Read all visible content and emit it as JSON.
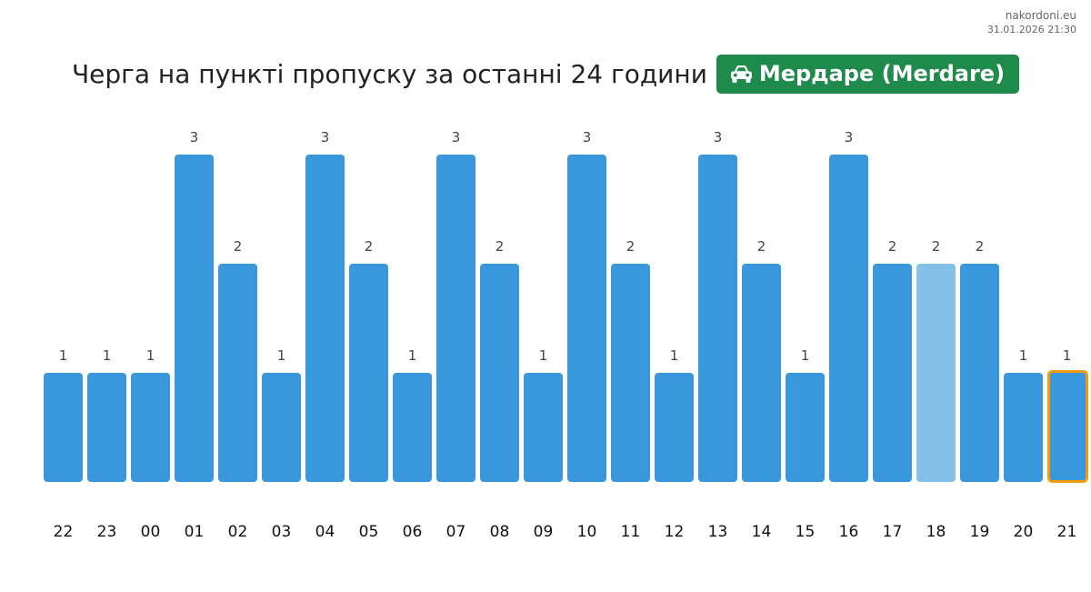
{
  "source": {
    "site": "nakordoni.eu",
    "timestamp": "31.01.2026 21:30"
  },
  "header": {
    "title": "Черга на пункті пропуску за останні 24 години",
    "badge_label": "Мердаре (Merdare)",
    "badge_icon": "car-icon",
    "badge_color": "#1e8a4c"
  },
  "chart_data": {
    "type": "bar",
    "categories": [
      "22",
      "23",
      "00",
      "01",
      "02",
      "03",
      "04",
      "05",
      "06",
      "07",
      "08",
      "09",
      "10",
      "11",
      "12",
      "13",
      "14",
      "15",
      "16",
      "17",
      "18",
      "19",
      "20",
      "21"
    ],
    "values": [
      1,
      1,
      1,
      3,
      2,
      1,
      3,
      2,
      1,
      3,
      2,
      1,
      3,
      2,
      1,
      3,
      2,
      1,
      3,
      2,
      2,
      2,
      1,
      1
    ],
    "data_labels": [
      "1",
      "1",
      "1",
      "3",
      "2",
      "1",
      "3",
      "2",
      "1",
      "3",
      "2",
      "1",
      "3",
      "2",
      "1",
      "3",
      "2",
      "1",
      "3",
      "2",
      "2",
      "2",
      "1",
      "1"
    ],
    "ylim": [
      0,
      3
    ],
    "grid": false,
    "legend": "none",
    "bar_color": "#3898db",
    "light_bar_index": 20,
    "light_bar_color": "#85c0e8",
    "highlight_bar_index": 23,
    "highlight_border_color": "#f39c12"
  }
}
